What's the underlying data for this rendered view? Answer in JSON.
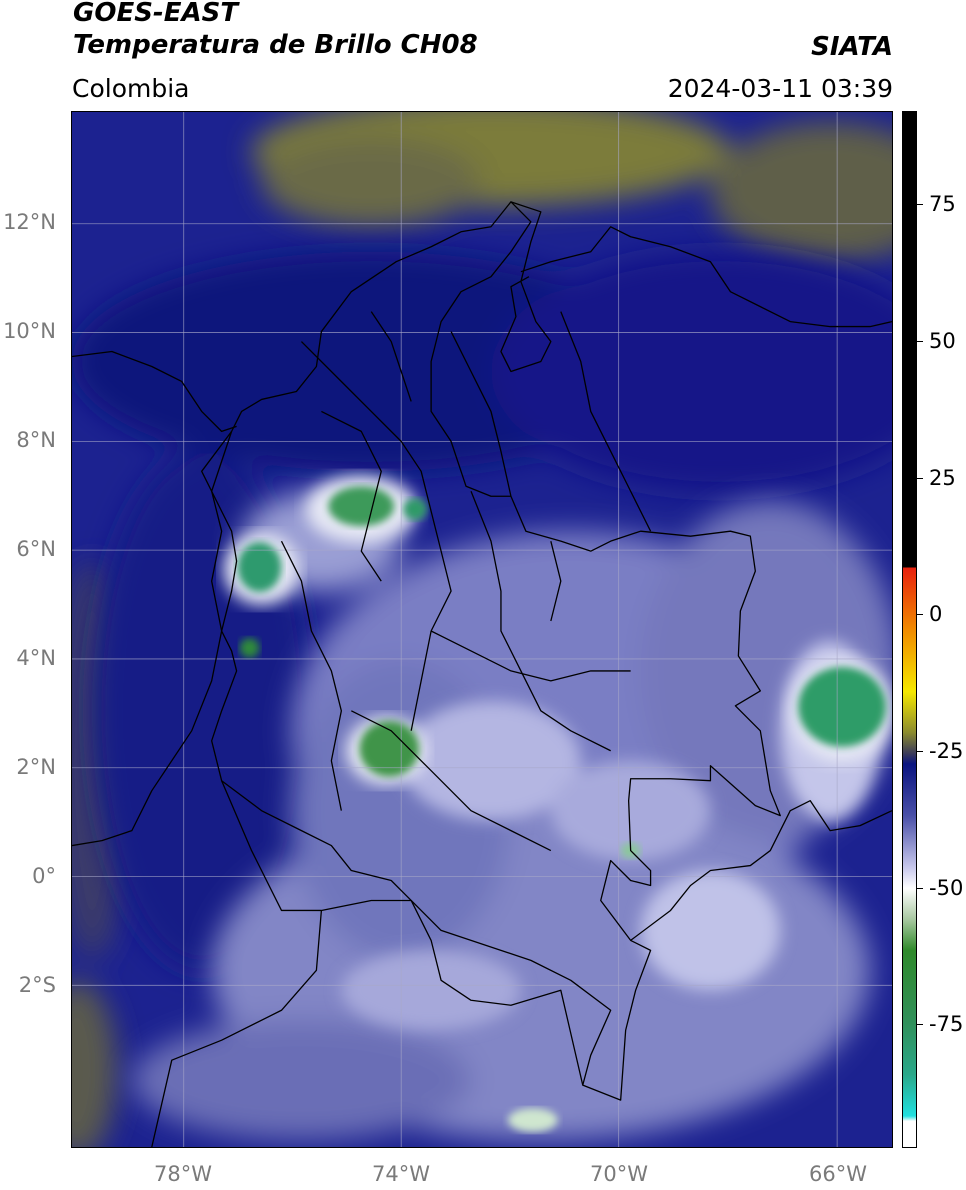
{
  "header": {
    "satellite": "GOES-EAST",
    "product": "Temperatura de Brillo CH08",
    "region": "Colombia",
    "source": "SIATA",
    "datetime": "2024-03-11 03:39"
  },
  "map": {
    "lat_labels": [
      "12°N",
      "10°N",
      "8°N",
      "6°N",
      "4°N",
      "2°N",
      "0°",
      "2°S"
    ],
    "lon_labels": [
      "78°W",
      "74°W",
      "70°W",
      "66°W"
    ]
  },
  "colorbar": {
    "labels": [
      "75",
      "50",
      "25",
      "0",
      "-25",
      "-50",
      "-75"
    ],
    "colors": {
      "black": "#000000",
      "red": "#e8200e",
      "orange": "#f08a00",
      "yellow": "#f5e800",
      "olive": "#8a8a2e",
      "navy": "#0a1480",
      "lavender": "#c8c8ec",
      "white": "#ffffff",
      "green": "#2f8a2a",
      "teal": "#2aa88a",
      "cyan": "#20e0e0"
    }
  }
}
